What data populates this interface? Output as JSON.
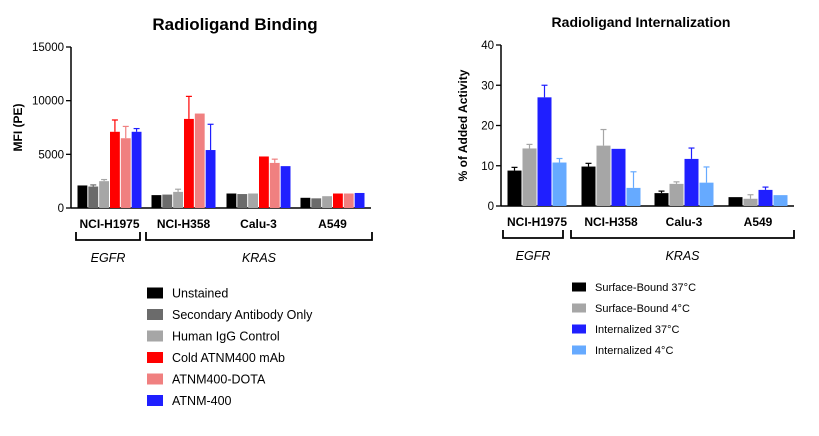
{
  "chart_data": [
    {
      "type": "bar",
      "title": "Radioligand Binding",
      "xlabel": "",
      "ylabel": "MFI (PE)",
      "ylim": [
        0,
        15000
      ],
      "yticks": [
        "0",
        "5000",
        "10000",
        "15000"
      ],
      "categories": [
        "NCI-H1975",
        "NCI-H358",
        "Calu-3",
        "A549"
      ],
      "groups": [
        {
          "label": "EGFR",
          "categories": [
            "NCI-H1975"
          ]
        },
        {
          "label": "KRAS",
          "categories": [
            "NCI-H358",
            "Calu-3",
            "A549"
          ]
        }
      ],
      "legend_position": "bottom",
      "series": [
        {
          "name": "Unstained",
          "color": "#000000",
          "values": [
            2100,
            1200,
            1350,
            950
          ],
          "errors": [
            0,
            0,
            0,
            0
          ]
        },
        {
          "name": "Secondary Antibody Only",
          "color": "#6b6b6b",
          "values": [
            2000,
            1250,
            1300,
            900
          ],
          "errors": [
            150,
            0,
            0,
            0
          ]
        },
        {
          "name": "Human IgG Control",
          "color": "#a6a6a6",
          "values": [
            2500,
            1500,
            1350,
            1100
          ],
          "errors": [
            150,
            250,
            0,
            0
          ]
        },
        {
          "name": "Cold ATNM400 mAb",
          "color": "#ff0000",
          "values": [
            7100,
            8300,
            4800,
            1350
          ],
          "errors": [
            1100,
            2100,
            0,
            0
          ]
        },
        {
          "name": "ATNM400-DOTA",
          "color": "#f08080",
          "values": [
            6500,
            8800,
            4200,
            1350
          ],
          "errors": [
            1100,
            0,
            350,
            0
          ]
        },
        {
          "name": "ATNM-400",
          "color": "#1f1fff",
          "values": [
            7100,
            5400,
            3900,
            1400
          ],
          "errors": [
            300,
            2400,
            0,
            0
          ]
        }
      ]
    },
    {
      "type": "bar",
      "title": "Radioligand Internalization",
      "xlabel": "",
      "ylabel": "% of Added Activity",
      "ylim": [
        0,
        40
      ],
      "yticks": [
        "0",
        "10",
        "20",
        "30",
        "40"
      ],
      "categories": [
        "NCI-H1975",
        "NCI-H358",
        "Calu-3",
        "A549"
      ],
      "groups": [
        {
          "label": "EGFR",
          "categories": [
            "NCI-H1975"
          ]
        },
        {
          "label": "KRAS",
          "categories": [
            "NCI-H358",
            "Calu-3",
            "A549"
          ]
        }
      ],
      "legend_position": "bottom",
      "series": [
        {
          "name": "Surface-Bound 37°C",
          "color": "#000000",
          "values": [
            8.8,
            9.8,
            3.2,
            2.2
          ],
          "errors": [
            0.8,
            0.8,
            0.5,
            0
          ]
        },
        {
          "name": "Surface-Bound 4°C",
          "color": "#a6a6a6",
          "values": [
            14.3,
            15.0,
            5.5,
            1.8
          ],
          "errors": [
            1.0,
            4.0,
            0.5,
            1.0
          ]
        },
        {
          "name": "Internalized 37°C",
          "color": "#1f1fff",
          "values": [
            27.0,
            14.2,
            11.7,
            4.0
          ],
          "errors": [
            3.0,
            0,
            2.7,
            0.7
          ]
        },
        {
          "name": "Internalized 4°C",
          "color": "#66aaff",
          "values": [
            10.8,
            4.5,
            5.8,
            2.7
          ],
          "errors": [
            1.0,
            4.0,
            3.9,
            0
          ]
        }
      ]
    }
  ]
}
